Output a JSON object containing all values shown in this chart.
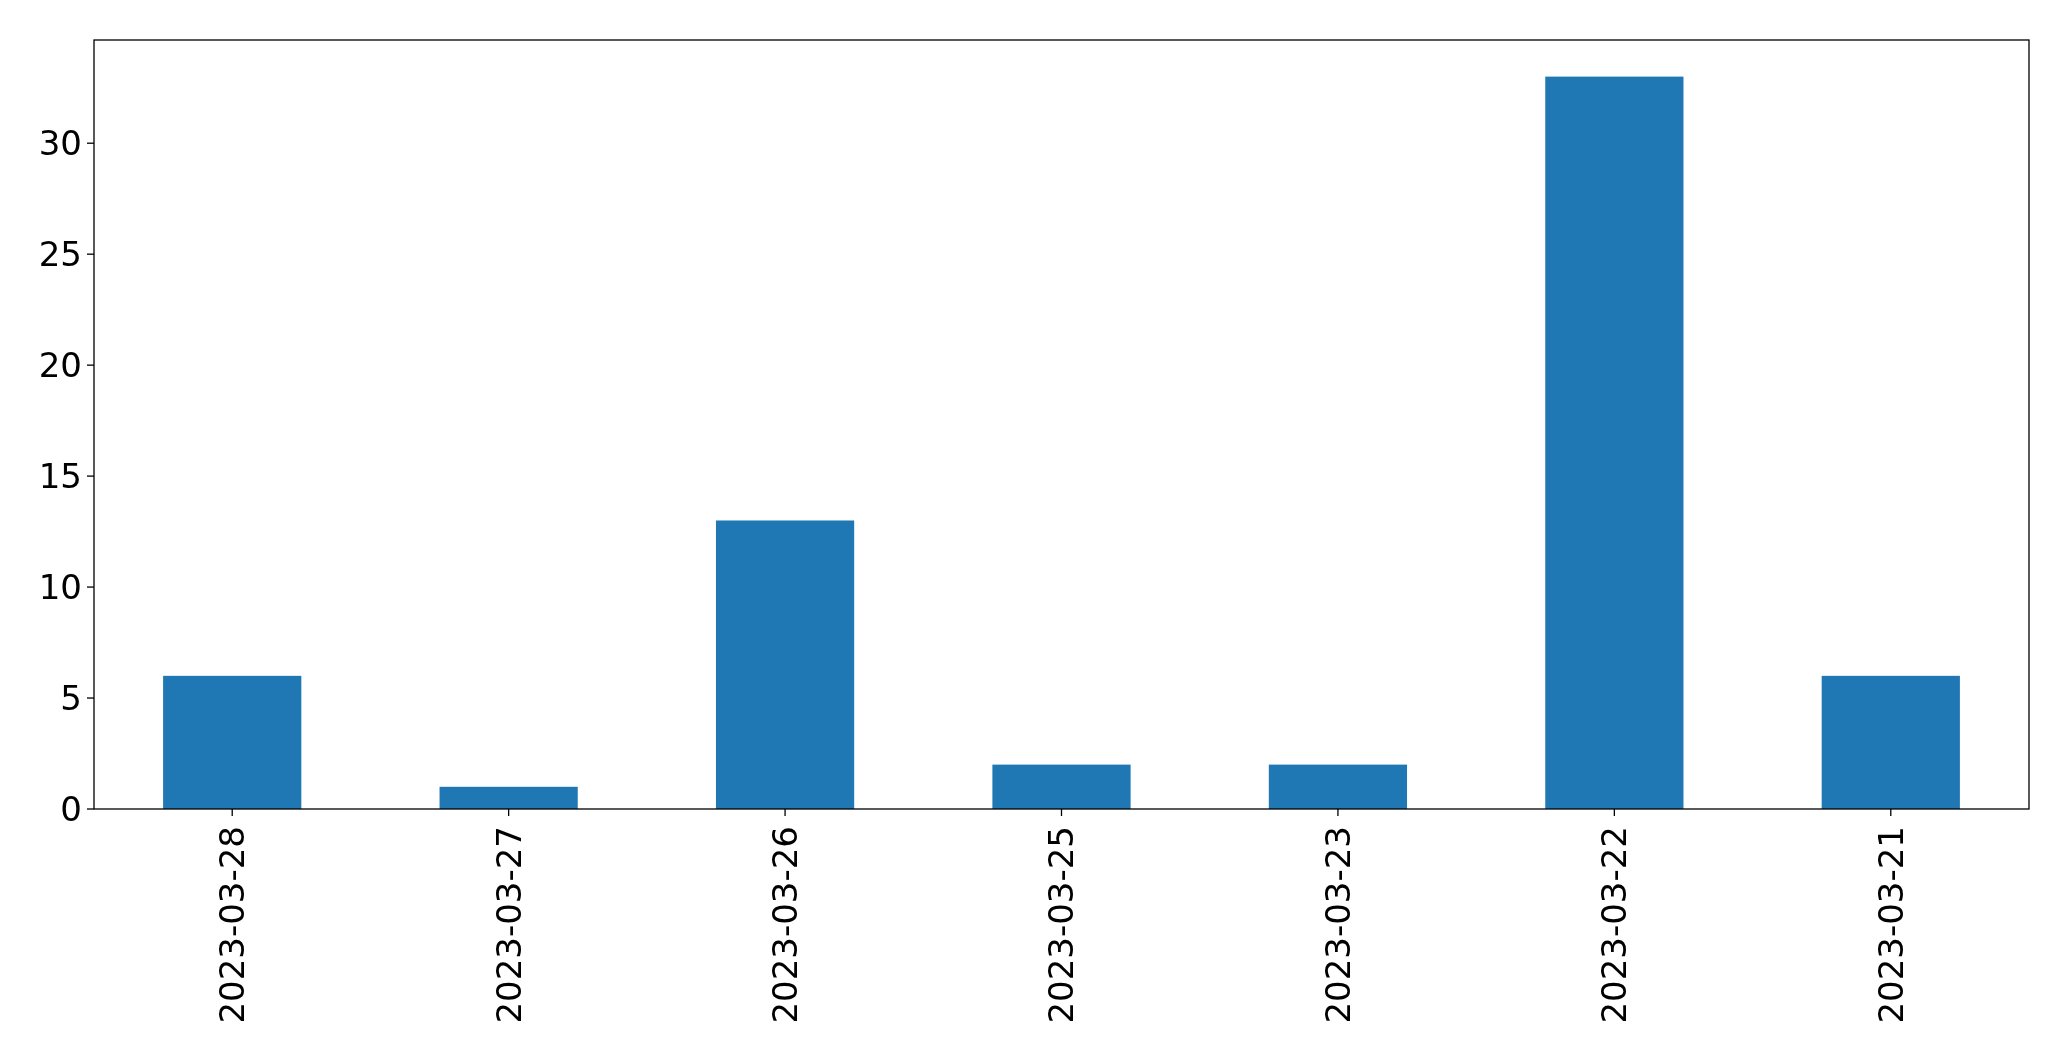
{
  "chart_data": {
    "type": "bar",
    "categories": [
      "2023-03-28",
      "2023-03-27",
      "2023-03-26",
      "2023-03-25",
      "2023-03-23",
      "2023-03-22",
      "2023-03-21"
    ],
    "values": [
      6,
      1,
      13,
      2,
      2,
      33,
      6
    ],
    "color": "#1f77b4",
    "ylim": [
      0,
      34.65
    ],
    "yticks": [
      0,
      5,
      10,
      15,
      20,
      25,
      30
    ]
  }
}
